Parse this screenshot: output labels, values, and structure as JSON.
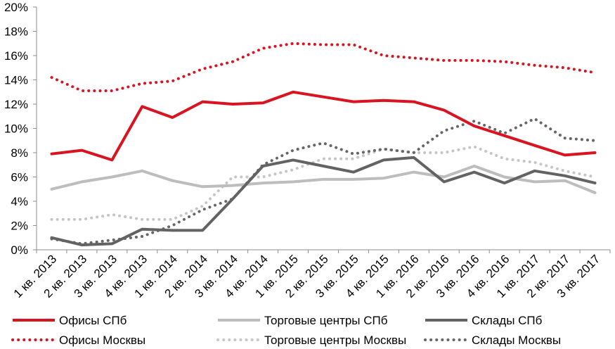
{
  "chart_data": {
    "type": "line",
    "title": "",
    "xlabel": "",
    "ylabel": "",
    "ylim": [
      0,
      20
    ],
    "yticks": [
      0,
      2,
      4,
      6,
      8,
      10,
      12,
      14,
      16,
      18,
      20
    ],
    "ytick_labels": [
      "0%",
      "2%",
      "4%",
      "6%",
      "8%",
      "10%",
      "12%",
      "14%",
      "16%",
      "18%",
      "20%"
    ],
    "grid": false,
    "legend_position": "bottom",
    "categories": [
      "1 кв. 2013",
      "2 кв. 2013",
      "3 кв. 2013",
      "4 кв. 2013",
      "1 кв. 2014",
      "2 кв. 2014",
      "3 кв. 2014",
      "4 кв. 2014",
      "1 кв. 2015",
      "2 кв. 2015",
      "3 кв. 2015",
      "4 кв. 2015",
      "1 кв. 2016",
      "2 кв. 2016",
      "3 кв. 2016",
      "4 кв. 2016",
      "1 кв. 2017",
      "2 кв. 2017",
      "3 кв. 2017"
    ],
    "series": [
      {
        "name": "Офисы СПб",
        "color": "#d9131f",
        "style": "solid",
        "width": 4,
        "values": [
          7.9,
          8.2,
          7.4,
          11.8,
          10.9,
          12.2,
          12.0,
          12.1,
          13.0,
          12.6,
          12.2,
          12.3,
          12.2,
          11.5,
          10.2,
          9.4,
          8.6,
          7.8,
          8.0
        ]
      },
      {
        "name": "Торговые центры СПб",
        "color": "#bdbdbd",
        "style": "solid",
        "width": 4,
        "values": [
          5.0,
          5.6,
          6.0,
          6.5,
          5.7,
          5.2,
          5.3,
          5.5,
          5.6,
          5.8,
          5.8,
          5.9,
          6.4,
          6.0,
          6.9,
          6.0,
          5.6,
          5.7,
          4.7
        ]
      },
      {
        "name": "Склады СПб",
        "color": "#636363",
        "style": "solid",
        "width": 4,
        "values": [
          1.0,
          0.4,
          0.5,
          1.7,
          1.6,
          1.6,
          4.2,
          6.9,
          7.4,
          6.9,
          6.4,
          7.4,
          7.6,
          5.6,
          6.4,
          5.5,
          6.5,
          6.1,
          5.5
        ]
      },
      {
        "name": "Офисы Москвы",
        "color": "#d9131f",
        "style": "dotted",
        "width": 4,
        "values": [
          14.2,
          13.1,
          13.1,
          13.7,
          13.9,
          14.9,
          15.5,
          16.6,
          17.0,
          16.9,
          16.9,
          16.0,
          15.8,
          15.6,
          15.6,
          15.5,
          15.2,
          15.0,
          14.6
        ]
      },
      {
        "name": "Торговые центры Москвы",
        "color": "#c6c6c6",
        "style": "dotted",
        "width": 4,
        "values": [
          2.5,
          2.5,
          2.9,
          2.5,
          2.5,
          3.6,
          6.0,
          6.0,
          6.6,
          7.5,
          7.5,
          8.3,
          8.0,
          8.0,
          8.5,
          7.5,
          7.2,
          6.5,
          6.0
        ]
      },
      {
        "name": "Склады Москвы",
        "color": "#666666",
        "style": "dotted",
        "width": 4,
        "values": [
          0.9,
          0.5,
          0.8,
          1.1,
          2.0,
          3.3,
          4.2,
          7.0,
          8.2,
          8.8,
          7.9,
          8.3,
          8.0,
          9.8,
          10.6,
          9.6,
          10.8,
          9.2,
          9.0
        ]
      }
    ]
  }
}
